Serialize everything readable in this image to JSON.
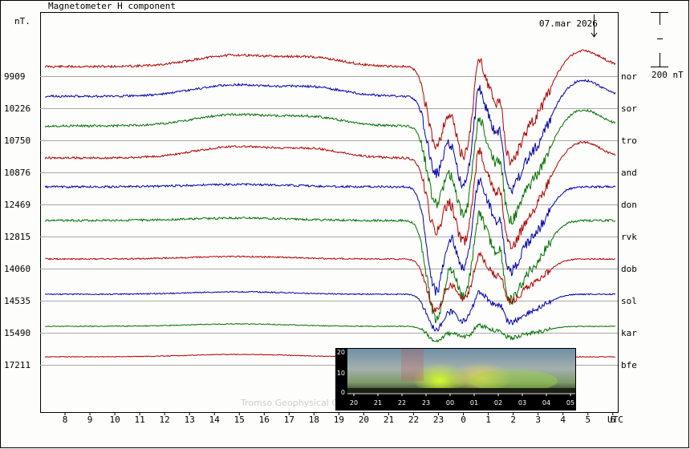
{
  "chart_data": {
    "type": "line",
    "title": "Magnetometer H component",
    "date_label": "07.mar 2026",
    "ylabel": "nT.",
    "x_unit_label": "UTC",
    "x_ticks": [
      "8",
      "9",
      "10",
      "11",
      "12",
      "13",
      "14",
      "15",
      "16",
      "17",
      "18",
      "19",
      "20",
      "21",
      "22",
      "23",
      "0",
      "1",
      "2",
      "3",
      "4",
      "5",
      "6"
    ],
    "x_range_hours": [
      7.0,
      30.2
    ],
    "scale_bar_label": "200 nT",
    "scale_bar_nT": 200,
    "series": [
      {
        "name": "nor",
        "baseline": "9909",
        "color": "#b00000",
        "offset": -12,
        "amp": 1.0,
        "seed": 11
      },
      {
        "name": "sor",
        "baseline": "10226",
        "color": "#0000a8",
        "offset": -15,
        "amp": 1.0,
        "seed": 23
      },
      {
        "name": "tro",
        "baseline": "10750",
        "color": "#007000",
        "offset": -18,
        "amp": 1.0,
        "seed": 37
      },
      {
        "name": "and",
        "baseline": "10876",
        "color": "#b00000",
        "offset": -18,
        "amp": 0.95,
        "seed": 41
      },
      {
        "name": "don",
        "baseline": "12469",
        "color": "#0000a8",
        "offset": -22,
        "amp": 0.9,
        "seed": 53
      },
      {
        "name": "rvk",
        "baseline": "12815",
        "color": "#007000",
        "offset": -20,
        "amp": 0.85,
        "seed": 67
      },
      {
        "name": "dob",
        "baseline": "14060",
        "color": "#b00000",
        "offset": -12,
        "amp": 0.45,
        "seed": 71
      },
      {
        "name": "sol",
        "baseline": "14535",
        "color": "#0000a8",
        "offset": -8,
        "amp": 0.3,
        "seed": 83
      },
      {
        "name": "kar",
        "baseline": "15490",
        "color": "#007000",
        "offset": -8,
        "amp": 0.12,
        "seed": 97
      },
      {
        "name": "bfe",
        "baseline": "17211",
        "color": "#b00000",
        "offset": -10,
        "amp": 0.08,
        "seed": 101
      }
    ]
  },
  "footer_text": "Tromso Geophysical O",
  "inset": {
    "y_ticks": [
      "20",
      "10",
      "0"
    ],
    "x_ticks": [
      "20",
      "21",
      "22",
      "23",
      "00",
      "01",
      "02",
      "03",
      "04",
      "05"
    ]
  }
}
